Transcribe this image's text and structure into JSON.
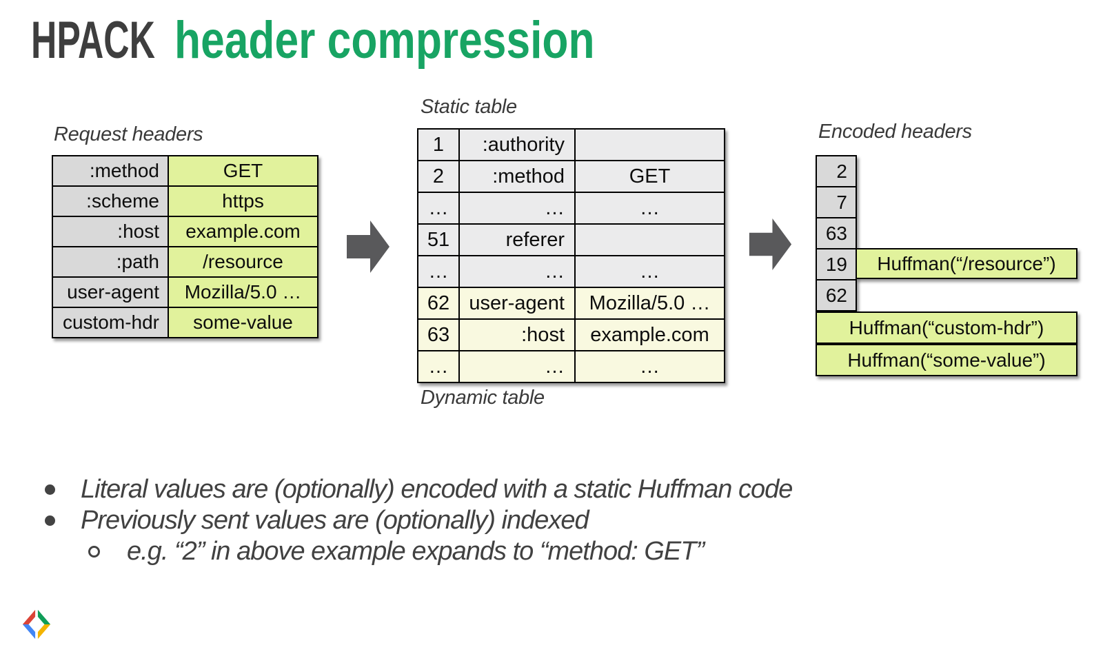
{
  "title": {
    "prefix": "HPACK",
    "suffix": "header compression"
  },
  "colors": {
    "title_dark": "#3e3e3e",
    "title_accent": "#18a463",
    "key_cell_gray": "#d9d9d9",
    "value_cell_green": "#e1f29c",
    "static_cell_gray": "#ebebec",
    "dynamic_cell_yellow": "#f9f9e0",
    "arrow_gray": "#59595b"
  },
  "request_headers": {
    "label": "Request headers",
    "rows": [
      {
        "name": ":method",
        "value": "GET"
      },
      {
        "name": ":scheme",
        "value": "https"
      },
      {
        "name": ":host",
        "value": "example.com"
      },
      {
        "name": ":path",
        "value": "/resource"
      },
      {
        "name": "user-agent",
        "value": "Mozilla/5.0 …"
      },
      {
        "name": "custom-hdr",
        "value": "some-value"
      }
    ]
  },
  "static_table": {
    "label": "Static table",
    "dynamic_label": "Dynamic table",
    "rows": [
      {
        "index": "1",
        "name": ":authority",
        "value": "",
        "zone": "static"
      },
      {
        "index": "2",
        "name": ":method",
        "value": "GET",
        "zone": "static"
      },
      {
        "index": "…",
        "name": "…",
        "value": "…",
        "zone": "static"
      },
      {
        "index": "51",
        "name": "referer",
        "value": "",
        "zone": "static"
      },
      {
        "index": "…",
        "name": "…",
        "value": "…",
        "zone": "static"
      },
      {
        "index": "62",
        "name": "user-agent",
        "value": "Mozilla/5.0 …",
        "zone": "dynamic"
      },
      {
        "index": "63",
        "name": ":host",
        "value": "example.com",
        "zone": "dynamic"
      },
      {
        "index": "…",
        "name": "…",
        "value": "…",
        "zone": "dynamic"
      }
    ]
  },
  "encoded_headers": {
    "label": "Encoded headers",
    "cells": [
      {
        "index": "2"
      },
      {
        "index": "7"
      },
      {
        "index": "63"
      },
      {
        "index": "19",
        "literal": "Huffman(“/resource”)"
      },
      {
        "index": "62"
      }
    ],
    "bottom_literals": [
      "Huffman(“custom-hdr”)",
      "Huffman(“some-value”)"
    ]
  },
  "bullets": {
    "items": [
      {
        "level": 1,
        "text": "Literal values are (optionally) encoded with a static Huffman code"
      },
      {
        "level": 1,
        "text": "Previously sent values are (optionally) indexed"
      },
      {
        "level": 2,
        "text": "e.g. “2” in above example expands to “method: GET”"
      }
    ]
  }
}
